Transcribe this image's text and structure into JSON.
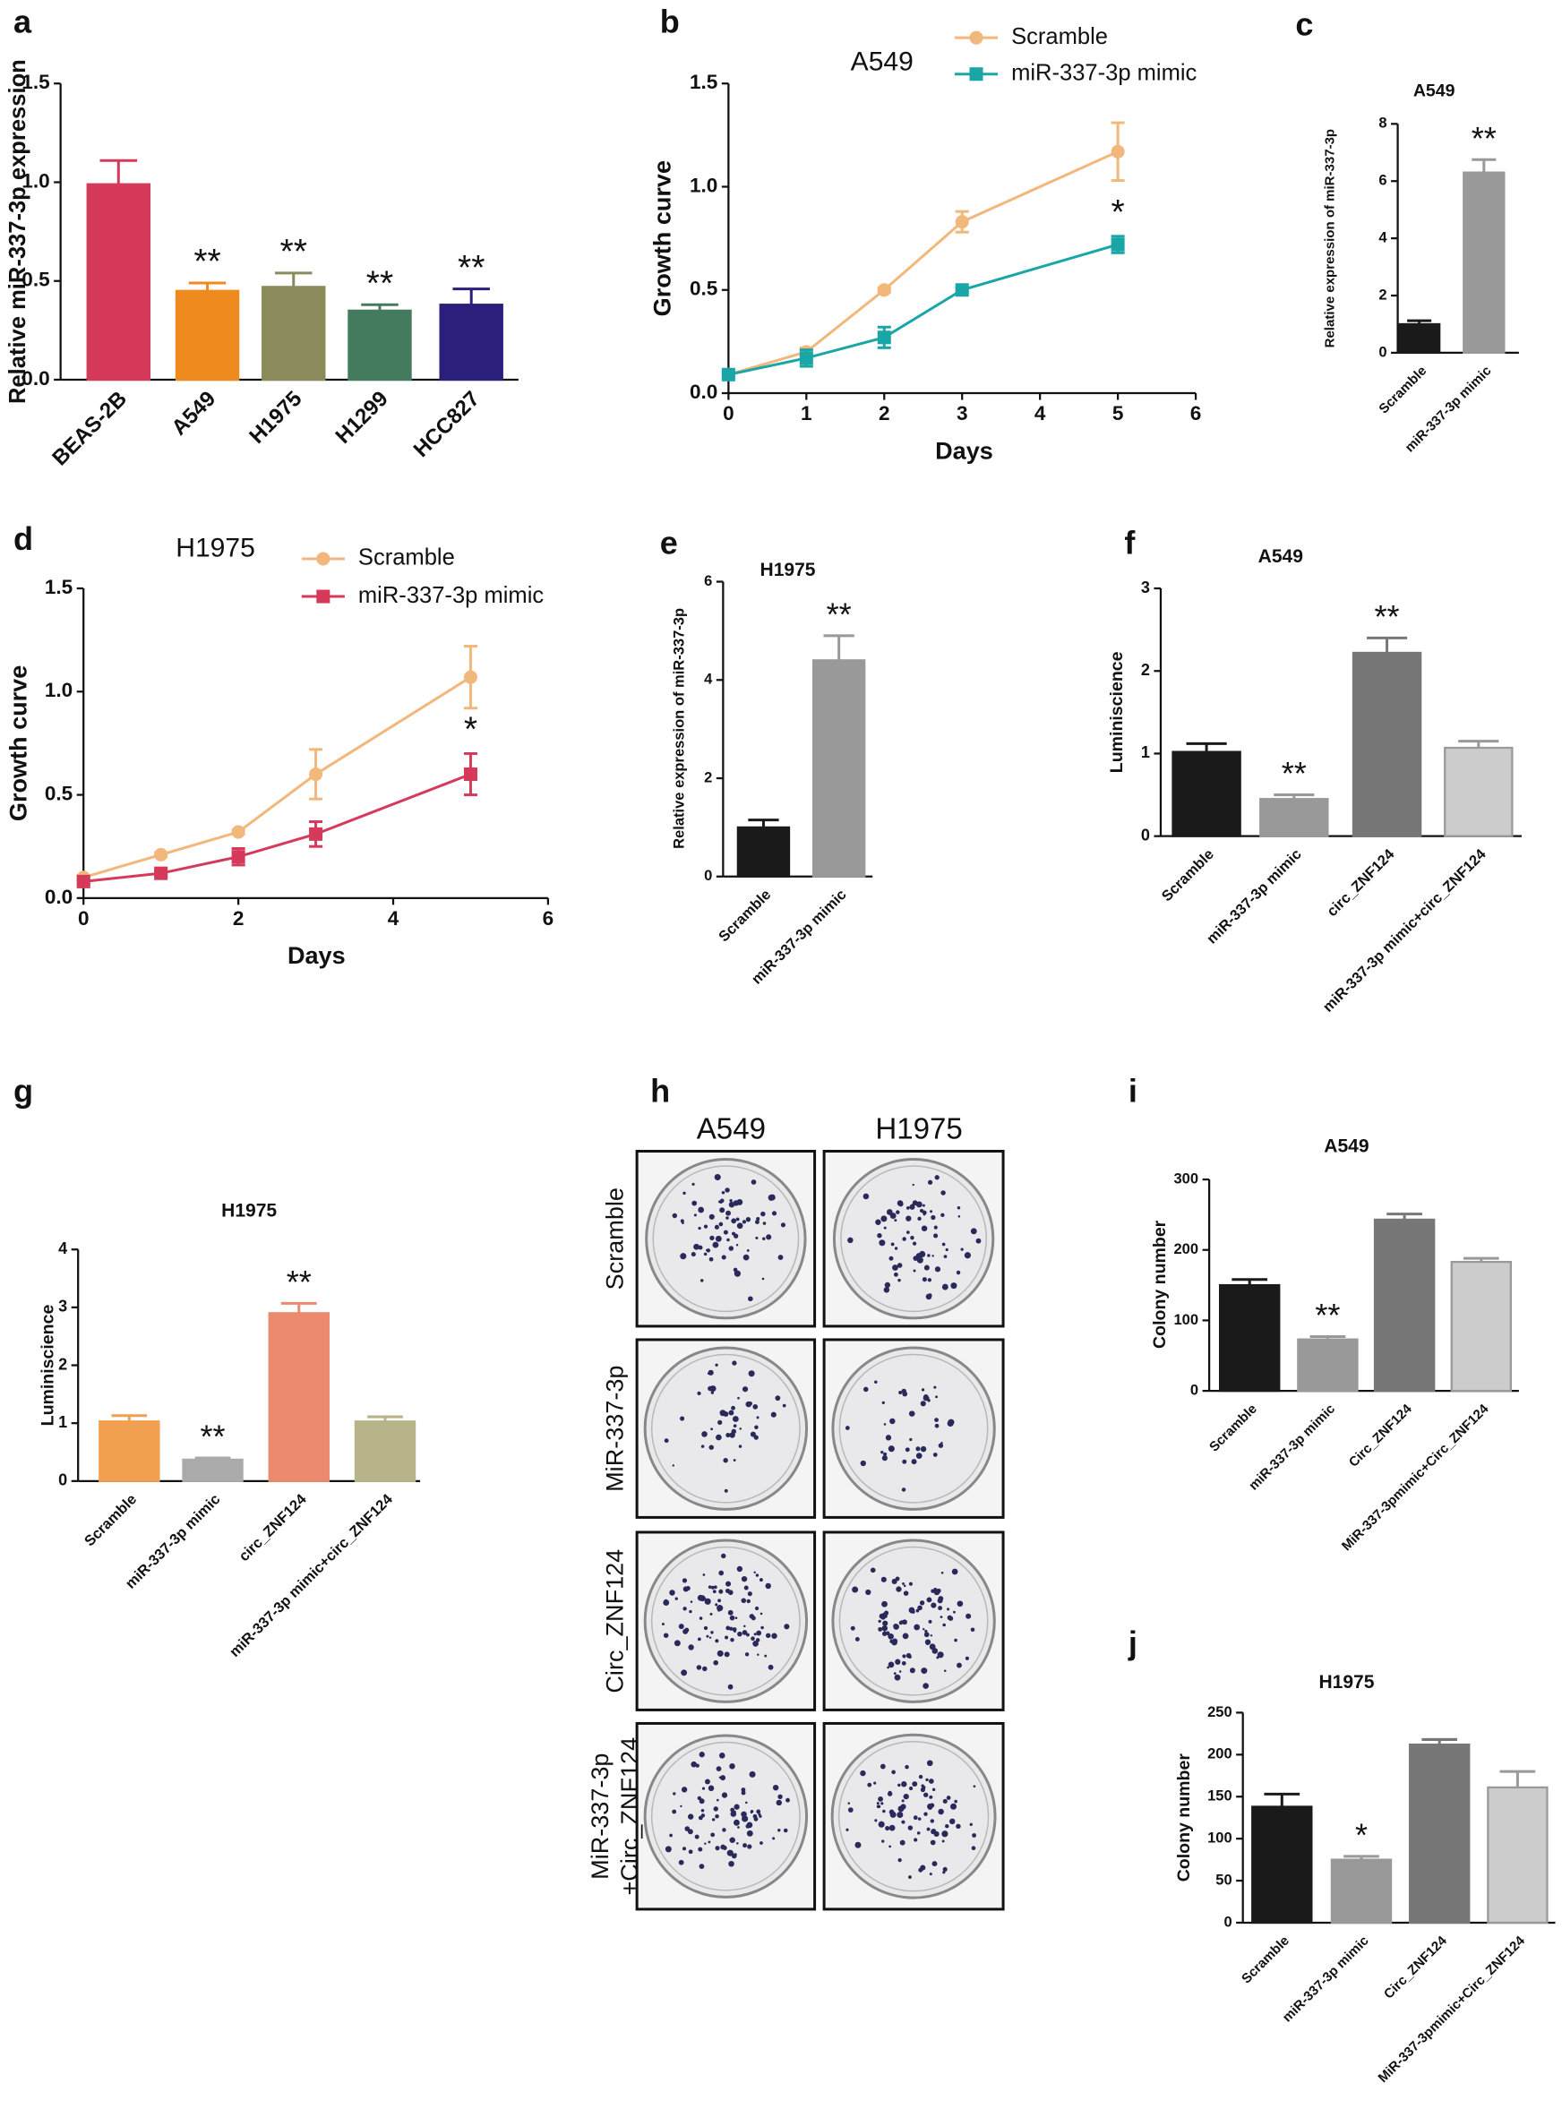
{
  "chart_data": [
    {
      "type": "bar",
      "panel": "a",
      "ylabel": "Relative miR-337-3p expression",
      "categories": [
        "BEAS-2B",
        "A549",
        "H1975",
        "H1299",
        "HCC827"
      ],
      "values": [
        0.99,
        0.45,
        0.47,
        0.35,
        0.38
      ],
      "errors": [
        0.12,
        0.04,
        0.07,
        0.03,
        0.08
      ],
      "colors": [
        "#d63a5a",
        "#ef8a1e",
        "#8a8a5a",
        "#447a5e",
        "#2a1f7a"
      ],
      "significance": [
        null,
        "**",
        "**",
        "**",
        "**"
      ],
      "ylim": [
        0,
        1.5
      ],
      "yticks": [
        {
          "value": 0,
          "label": "0.0"
        },
        0.5,
        {
          "value": 1,
          "label": "1.0"
        },
        1.5
      ]
    },
    {
      "type": "line",
      "panel": "b",
      "title": "A549",
      "xlabel": "Days",
      "ylabel": "Growth curve",
      "x": [
        0,
        1,
        2,
        3,
        5
      ],
      "series": [
        {
          "name": "Scramble",
          "color": "#f2b77a",
          "marker": "circle",
          "values": [
            0.09,
            0.2,
            0.5,
            0.83,
            1.17
          ],
          "errors": [
            0.01,
            0.02,
            0.01,
            0.05,
            0.14
          ],
          "significance": [
            null,
            null,
            null,
            null,
            null
          ]
        },
        {
          "name": "miR-337-3p mimic",
          "color": "#1aa6a6",
          "marker": "square",
          "values": [
            0.09,
            0.17,
            0.27,
            0.5,
            0.72
          ],
          "errors": [
            0.01,
            0.04,
            0.05,
            0.01,
            0.04
          ],
          "significance": [
            null,
            null,
            null,
            null,
            "*"
          ]
        }
      ],
      "xlim": [
        0,
        6
      ],
      "xticks": [
        0,
        1,
        2,
        3,
        4,
        5,
        6
      ],
      "ylim": [
        0,
        1.5
      ],
      "yticks": [
        {
          "value": 0,
          "label": "0.0"
        },
        0.5,
        {
          "value": 1,
          "label": "1.0"
        },
        1.5
      ]
    },
    {
      "type": "bar",
      "panel": "c",
      "title": "A549",
      "ylabel": "Relative expression of miR-337-3p",
      "categories": [
        "Scramble",
        "miR-337-3p mimic"
      ],
      "values": [
        1.0,
        6.3
      ],
      "errors": [
        0.12,
        0.45
      ],
      "colors": [
        "#1a1a1a",
        "#999999"
      ],
      "significance": [
        null,
        "**"
      ],
      "ylim": [
        0,
        8
      ],
      "yticks": [
        0,
        2,
        4,
        6,
        8
      ]
    },
    {
      "type": "line",
      "panel": "d",
      "title": "H1975",
      "xlabel": "Days",
      "ylabel": "Growth curve",
      "x": [
        0,
        1,
        2,
        3,
        5
      ],
      "series": [
        {
          "name": "Scramble",
          "color": "#f2b77a",
          "marker": "circle",
          "values": [
            0.1,
            0.21,
            0.32,
            0.6,
            1.07
          ],
          "errors": [
            0.01,
            0.01,
            0.01,
            0.12,
            0.15
          ],
          "significance": [
            null,
            null,
            null,
            null,
            null
          ]
        },
        {
          "name": "miR-337-3p mimic",
          "color": "#d63a5a",
          "marker": "square",
          "values": [
            0.08,
            0.12,
            0.2,
            0.31,
            0.6
          ],
          "errors": [
            0.01,
            0.01,
            0.04,
            0.06,
            0.1
          ],
          "significance": [
            null,
            null,
            null,
            null,
            "*"
          ]
        }
      ],
      "xlim": [
        0,
        6
      ],
      "xticks": [
        0,
        2,
        4,
        6
      ],
      "ylim": [
        0,
        1.5
      ],
      "yticks": [
        {
          "value": 0,
          "label": "0.0"
        },
        0.5,
        {
          "value": 1,
          "label": "1.0"
        },
        1.5
      ]
    },
    {
      "type": "bar",
      "panel": "e",
      "title": "H1975",
      "ylabel": "Relative expression of miR-337-3p",
      "categories": [
        "Scramble",
        "miR-337-3p mimic"
      ],
      "values": [
        1.0,
        4.4
      ],
      "errors": [
        0.15,
        0.5
      ],
      "colors": [
        "#1a1a1a",
        "#999999"
      ],
      "significance": [
        null,
        "**"
      ],
      "ylim": [
        0,
        6
      ],
      "yticks": [
        0,
        2,
        4,
        6
      ]
    },
    {
      "type": "bar",
      "panel": "f",
      "title": "A549",
      "ylabel": "Luminiscience",
      "categories": [
        "Scramble",
        "miR-337-3p mimic",
        "circ_ZNF124",
        "miR-337-3p mimic+circ_ZNF124"
      ],
      "values": [
        1.02,
        0.45,
        2.22,
        1.07
      ],
      "errors": [
        0.1,
        0.05,
        0.18,
        0.08
      ],
      "colors": [
        "#1a1a1a",
        "#999999",
        "#777777",
        "#cccccc"
      ],
      "significance": [
        null,
        "**",
        "**",
        null
      ],
      "ylim": [
        0,
        3
      ],
      "yticks": [
        0,
        1,
        2,
        3
      ]
    },
    {
      "type": "bar",
      "panel": "g",
      "title": "H1975",
      "ylabel": "Luminiscience",
      "categories": [
        "Scramble",
        "miR-337-3p mimic",
        "circ_ZNF124",
        "miR-337-3p mimic+circ_ZNF124"
      ],
      "values": [
        1.03,
        0.37,
        2.9,
        1.03
      ],
      "errors": [
        0.1,
        0.03,
        0.17,
        0.08
      ],
      "colors": [
        "#f0a050",
        "#aaaaaa",
        "#ec8a70",
        "#b8b48a"
      ],
      "significance": [
        null,
        "**",
        "**",
        null
      ],
      "ylim": [
        0,
        4
      ],
      "yticks": [
        0,
        1,
        2,
        3,
        4
      ]
    },
    {
      "type": "bar",
      "panel": "i",
      "title": "A549",
      "ylabel": "Colony number",
      "categories": [
        "Scramble",
        "miR-337-3p mimic",
        "Circ_ZNF124",
        "MiR-337-3pmimic+Circ_ZNF124"
      ],
      "values": [
        150,
        73,
        243,
        183
      ],
      "errors": [
        8,
        4,
        8,
        5
      ],
      "colors": [
        "#1a1a1a",
        "#999999",
        "#777777",
        "#cccccc"
      ],
      "significance": [
        null,
        "**",
        null,
        null
      ],
      "ylim": [
        0,
        300
      ],
      "yticks": [
        0,
        100,
        200,
        300
      ]
    },
    {
      "type": "bar",
      "panel": "j",
      "title": "H1975",
      "ylabel": "Colony number",
      "categories": [
        "Scramble",
        "miR-337-3p mimic",
        "Circ_ZNF124",
        "MiR-337-3pmimic+Circ_ZNF124"
      ],
      "values": [
        138,
        75,
        212,
        161
      ],
      "errors": [
        15,
        4,
        6,
        19
      ],
      "colors": [
        "#1a1a1a",
        "#999999",
        "#777777",
        "#cccccc"
      ],
      "significance": [
        null,
        "*",
        null,
        null
      ],
      "ylim": [
        0,
        250
      ],
      "yticks": [
        0,
        50,
        100,
        150,
        200,
        250
      ]
    }
  ],
  "colony_panel": {
    "panel": "h",
    "columns": [
      "A549",
      "H1975"
    ],
    "rows": [
      [
        "Scramble"
      ],
      [
        "MiR-337-3p"
      ],
      [
        "Circ_ZNF124"
      ],
      [
        "MiR-337-3p",
        "+Circ_ZNF124"
      ]
    ]
  }
}
